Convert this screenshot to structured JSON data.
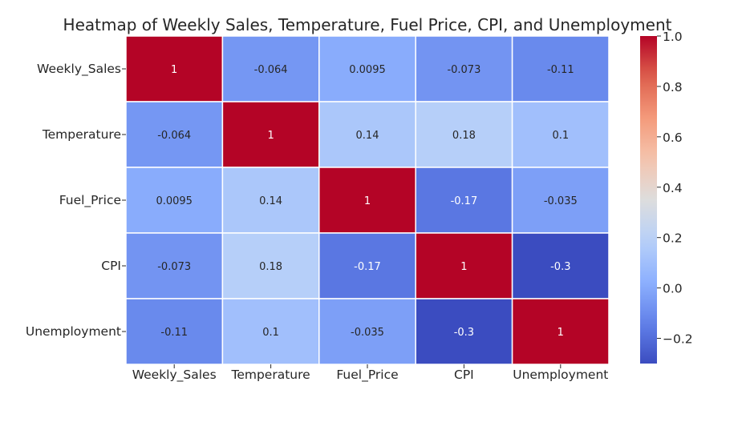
{
  "chart_data": {
    "type": "heatmap",
    "title": "Heatmap of Weekly Sales, Temperature, Fuel Price, CPI, and Unemployment",
    "rows": [
      "Weekly_Sales",
      "Temperature",
      "Fuel_Price",
      "CPI",
      "Unemployment"
    ],
    "columns": [
      "Weekly_Sales",
      "Temperature",
      "Fuel_Price",
      "CPI",
      "Unemployment"
    ],
    "values": [
      [
        1,
        -0.064,
        0.0095,
        -0.073,
        -0.11
      ],
      [
        -0.064,
        1,
        0.14,
        0.18,
        0.1
      ],
      [
        0.0095,
        0.14,
        1,
        -0.17,
        -0.035
      ],
      [
        -0.073,
        0.18,
        -0.17,
        1,
        -0.3
      ],
      [
        -0.11,
        0.1,
        -0.035,
        -0.3,
        1
      ]
    ],
    "cell_labels": [
      [
        "1",
        "-0.064",
        "0.0095",
        "-0.073",
        "-0.11"
      ],
      [
        "-0.064",
        "1",
        "0.14",
        "0.18",
        "0.1"
      ],
      [
        "0.0095",
        "0.14",
        "1",
        "-0.17",
        "-0.035"
      ],
      [
        "-0.073",
        "0.18",
        "-0.17",
        "1",
        "-0.3"
      ],
      [
        "-0.11",
        "0.1",
        "-0.035",
        "-0.3",
        "1"
      ]
    ],
    "colormap": "coolwarm",
    "color_range": [
      -0.3,
      1.0
    ],
    "colorbar_ticks": [
      1.0,
      0.8,
      0.6,
      0.4,
      0.2,
      0.0,
      -0.2
    ],
    "colorbar_tick_labels": [
      "1.0",
      "0.8",
      "0.6",
      "0.4",
      "0.2",
      "0.0",
      "−0.2"
    ],
    "legend_position": "right",
    "grid": true,
    "cell_border_color": "#ffffff"
  }
}
